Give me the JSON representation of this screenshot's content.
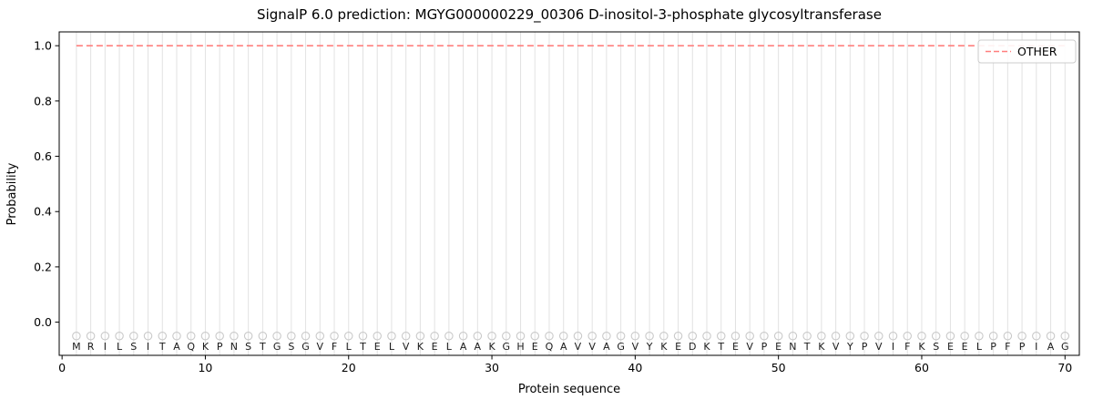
{
  "figure": {
    "title": "SignalP 6.0 prediction: MGYG000000229_00306 D-inositol-3-phosphate glycosyltransferase",
    "xlabel": "Protein sequence",
    "ylabel": "Probability",
    "legend": {
      "position": "upper right",
      "entries": [
        {
          "label": "OTHER",
          "color": "#ff7f7e",
          "line_style": "dashed"
        }
      ]
    }
  },
  "chart_data": {
    "type": "line",
    "title": "SignalP 6.0 prediction: MGYG000000229_00306 D-inositol-3-phosphate glycosyltransferase",
    "xlabel": "Protein sequence",
    "ylabel": "Probability",
    "xlim": [
      -0.2,
      71
    ],
    "ylim": [
      -0.12,
      1.05
    ],
    "x_ticks": [
      0,
      10,
      20,
      30,
      40,
      50,
      60,
      70
    ],
    "y_ticks": [
      0.0,
      0.2,
      0.4,
      0.6,
      0.8,
      1.0
    ],
    "grid": "light vertical gridline at every residue position",
    "grid_color": "#e2e2e2",
    "legend_position": "upper right",
    "series": [
      {
        "name": "OTHER",
        "color": "#ff7f7e",
        "line_style": "dashed",
        "line_width": 1.6,
        "x_from": 1,
        "x_to": 70,
        "y_constant": 1.0,
        "description": "Flat dashed probability line at 1.0 for all 70 residues (OTHER class, no signal peptide)"
      }
    ],
    "sequence": "MRILSITAQKPNSTGSGVFLTELVKELAAKGHEQAVVAGVYKEDKTEVPENTKVYPVIFKSEELPFPIAG",
    "sequence_length": 70,
    "residue_marker": {
      "shape": "circle",
      "y": -0.05,
      "color": "#c9c9c9"
    },
    "residue_letter_color": "#1a1a1a"
  }
}
